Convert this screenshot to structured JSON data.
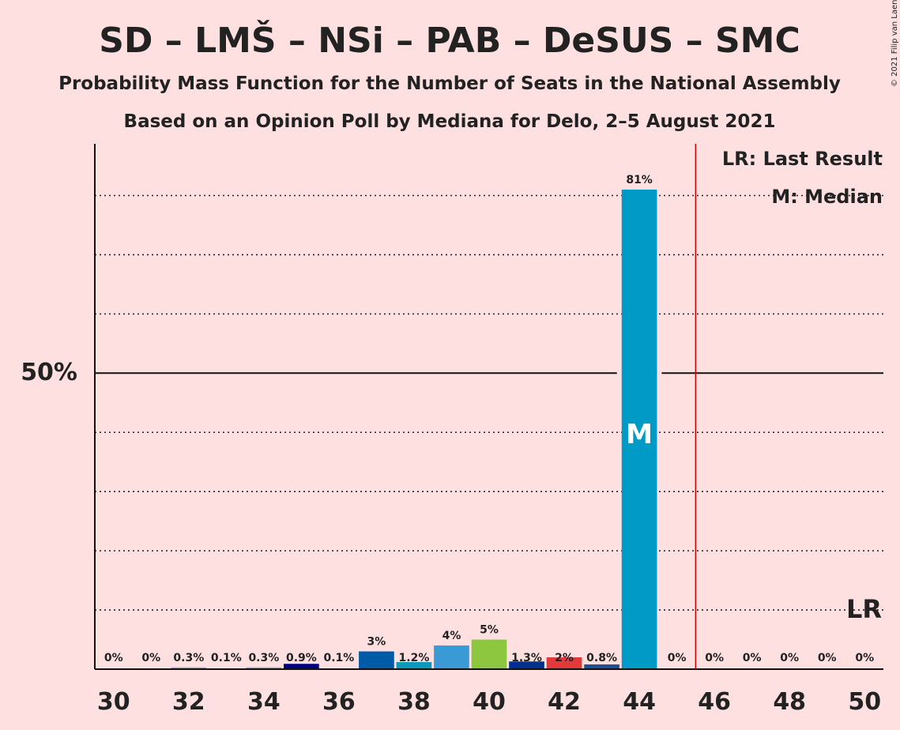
{
  "copyright": "© 2021 Filip van Laenen",
  "chart_data": {
    "type": "bar",
    "title": "SD – LMŠ – NSi – PAB – DeSUS – SMC",
    "subtitle1": "Probability Mass Function for the Number of Seats in the National Assembly",
    "subtitle2": "Based on an Opinion Poll by Mediana for Delo, 2–5 August 2021",
    "x": [
      30,
      31,
      32,
      33,
      34,
      35,
      36,
      37,
      38,
      39,
      40,
      41,
      42,
      43,
      44,
      45,
      46,
      47,
      48,
      49,
      50
    ],
    "values": [
      0,
      0,
      0.3,
      0.1,
      0.3,
      0.9,
      0.1,
      3,
      1.2,
      4,
      5,
      1.3,
      2,
      0.8,
      81,
      0,
      0,
      0,
      0,
      0,
      0
    ],
    "value_labels": [
      "0%",
      "0%",
      "0.3%",
      "0.1%",
      "0.3%",
      "0.9%",
      "0.1%",
      "3%",
      "1.2%",
      "4%",
      "5%",
      "1.3%",
      "2%",
      "0.8%",
      "81%",
      "0%",
      "0%",
      "0%",
      "0%",
      "0%",
      "0%"
    ],
    "bar_colors": [
      "#9999cc",
      "#9999cc",
      "#9999cc",
      "#9999cc",
      "#9999cc",
      "#000080",
      "#9999cc",
      "#005ba6",
      "#0d9ab5",
      "#3a9ad6",
      "#8dc63f",
      "#00308f",
      "#e03a3e",
      "#1f4f9c",
      "#009ac7",
      "#9999cc",
      "#9999cc",
      "#9999cc",
      "#9999cc",
      "#9999cc",
      "#9999cc"
    ],
    "x_tick_labels": [
      "30",
      "32",
      "34",
      "36",
      "38",
      "40",
      "42",
      "44",
      "46",
      "48",
      "50"
    ],
    "x_ticks": [
      30,
      32,
      34,
      36,
      38,
      40,
      42,
      44,
      46,
      48,
      50
    ],
    "y_tick_label": "50%",
    "y_tick_value": 50,
    "ylim": [
      0,
      88
    ],
    "gridlines": [
      10,
      20,
      30,
      40,
      60,
      70,
      80
    ],
    "majority_line": 45.5,
    "majority_color": "#cc0000",
    "median_seat": 44,
    "median_marker": "M",
    "last_result_seat": 50,
    "last_result_marker": "LR",
    "legend": {
      "lr": "LR: Last Result",
      "m": "M: Median"
    }
  }
}
